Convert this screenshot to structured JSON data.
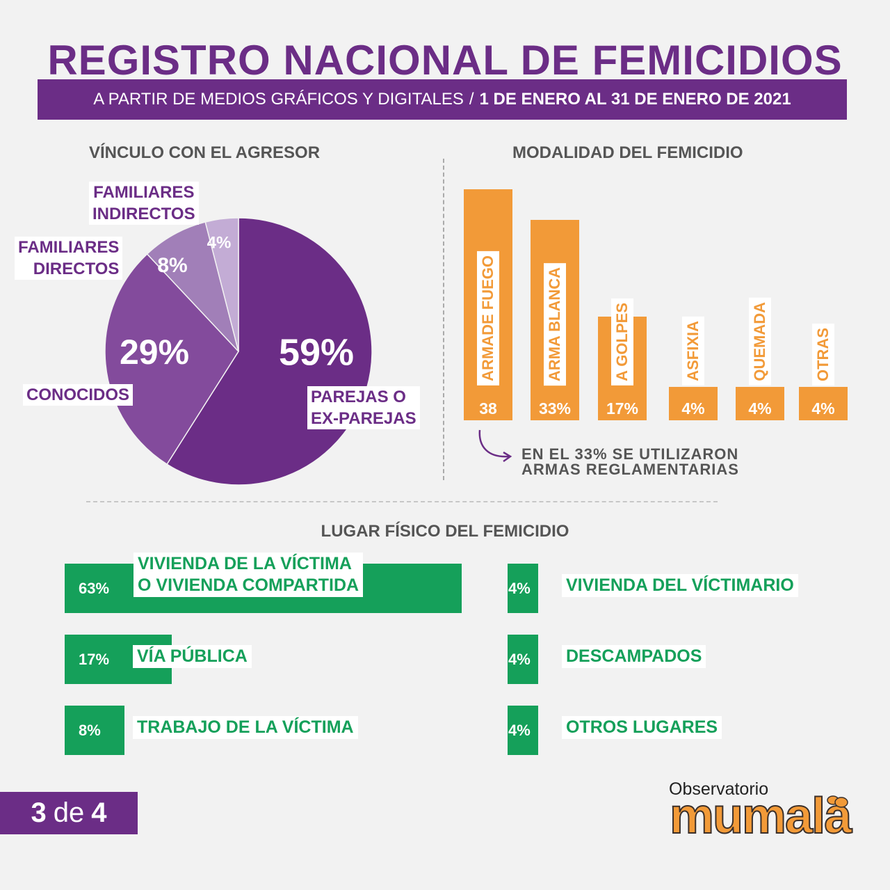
{
  "header": {
    "title": "REGISTRO NACIONAL DE FEMICIDIOS",
    "subtitle_left": "A PARTIR DE MEDIOS GRÁFICOS Y DIGITALES",
    "subtitle_sep": "/",
    "subtitle_right": "1 DE ENERO AL 31 DE ENERO DE 2021"
  },
  "colors": {
    "purple": "#6b2d86",
    "orange": "#f29a38",
    "green": "#15a05a"
  },
  "note": {
    "line1": "EN EL 33% SE UTILIZARON",
    "line2": "ARMAS REGLAMENTARIAS"
  },
  "pager": {
    "current": "3",
    "word": "de",
    "total": "4"
  },
  "logo": {
    "top": "Observatorio",
    "word": "mumala"
  },
  "chart_data": [
    {
      "type": "pie",
      "title": "VÍNCULO CON EL AGRESOR",
      "slices": [
        {
          "label": "PAREJAS O EX-PAREJAS",
          "value": 59,
          "display": "59%",
          "color": "#6b2d86"
        },
        {
          "label": "CONOCIDOS",
          "value": 29,
          "display": "29%",
          "color": "#834b9c"
        },
        {
          "label": "FAMILIARES DIRECTOS",
          "value": 8,
          "display": "8%",
          "color": "#a17fb8"
        },
        {
          "label": "FAMILIARES INDIRECTOS",
          "value": 4,
          "display": "4%",
          "color": "#c3acd5"
        }
      ]
    },
    {
      "type": "bar",
      "title": "MODALIDAD DEL FEMICIDIO",
      "categories": [
        "ARMADE FUEGO",
        "ARMA BLANCA",
        "A GOLPES",
        "ASFIXIA",
        "QUEMADA",
        "OTRAS"
      ],
      "values": [
        38,
        33,
        17,
        4,
        4,
        4
      ],
      "display": [
        "38",
        "33%",
        "17%",
        "4%",
        "4%",
        "4%"
      ]
    },
    {
      "type": "bar",
      "orientation": "horizontal",
      "title": "LUGAR FÍSICO DEL FEMICIDIO",
      "items": [
        {
          "label": "VIVIENDA DE LA VÍCTIMA O VIVIENDA COMPARTIDA",
          "value": 63,
          "display": "63%"
        },
        {
          "label": "VÍA PÚBLICA",
          "value": 17,
          "display": "17%"
        },
        {
          "label": "TRABAJO DE LA VÍCTIMA",
          "value": 8,
          "display": "8%"
        },
        {
          "label": "VIVIENDA DEL VÍCTIMARIO",
          "value": 4,
          "display": "4%"
        },
        {
          "label": "DESCAMPADOS",
          "value": 4,
          "display": "4%"
        },
        {
          "label": "OTROS LUGARES",
          "value": 4,
          "display": "4%"
        }
      ]
    }
  ]
}
